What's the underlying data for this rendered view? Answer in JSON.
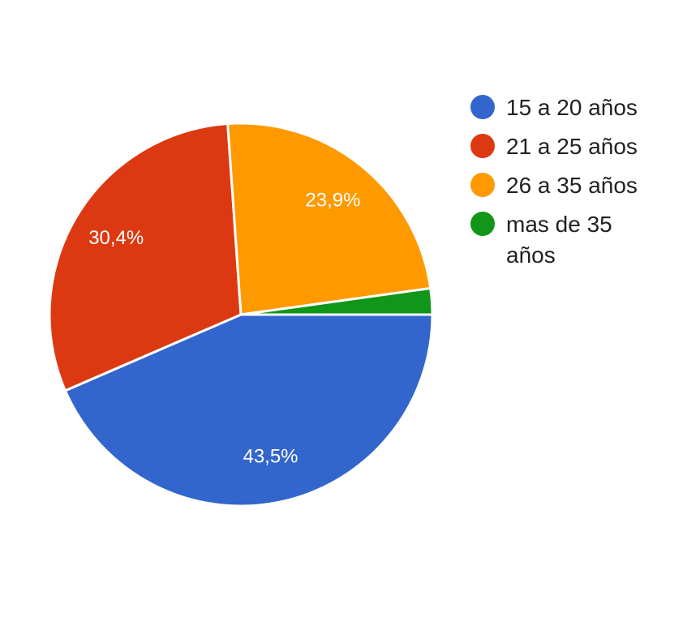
{
  "chart_data": {
    "type": "pie",
    "categories": [
      "15 a 20 años",
      "21 a 25 años",
      "26 a 35 años",
      "mas de 35 años"
    ],
    "values": [
      43.5,
      30.4,
      23.9,
      2.2
    ],
    "value_labels": [
      "43,5%",
      "30,4%",
      "23,9%",
      null
    ],
    "colors": [
      "#3366cc",
      "#dc3912",
      "#ff9900",
      "#109618"
    ],
    "legend": "right"
  }
}
